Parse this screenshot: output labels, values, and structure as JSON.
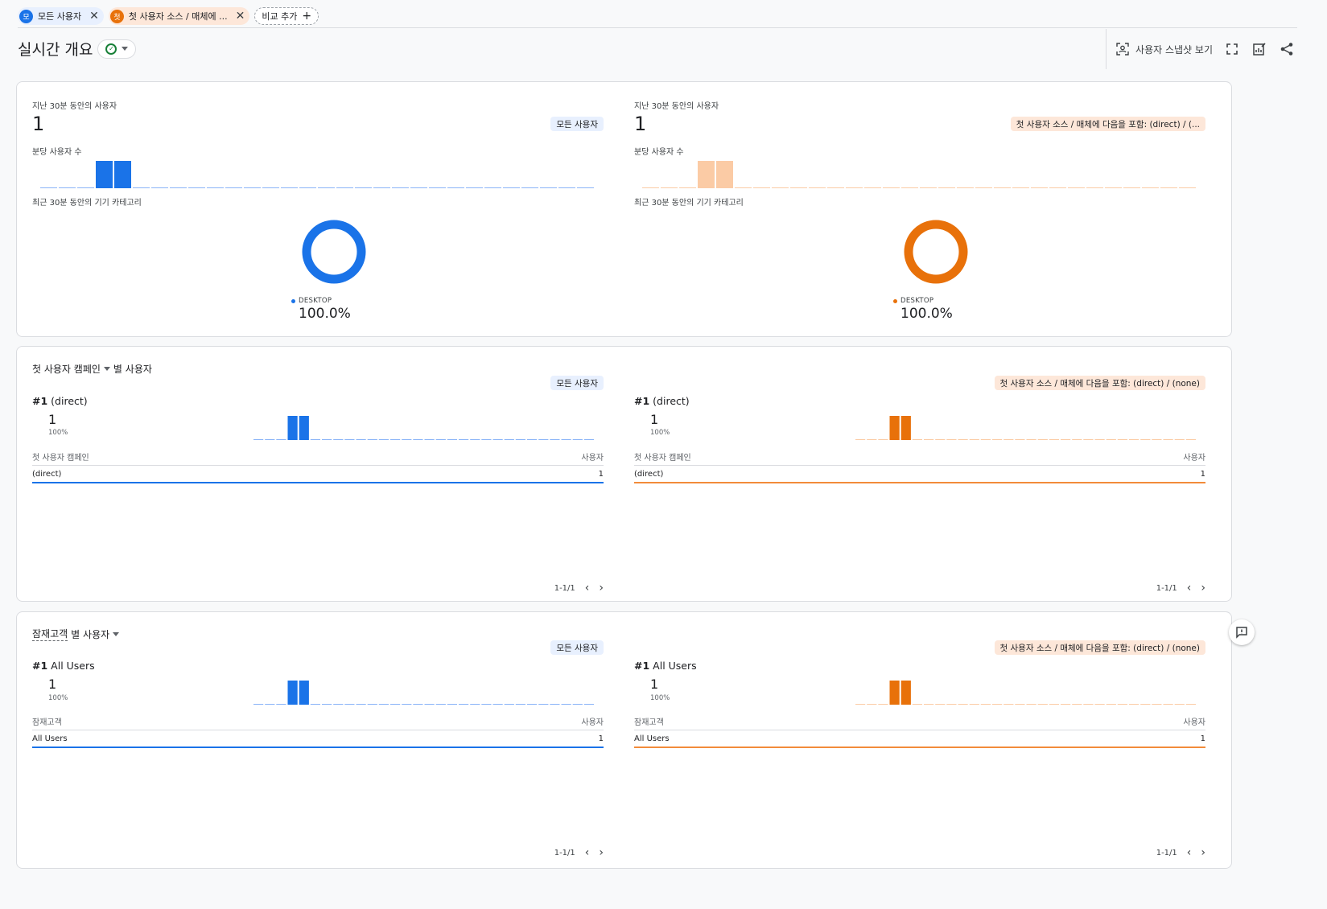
{
  "comparisons": {
    "chip1": {
      "avatar": "모",
      "label": "모든 사용자"
    },
    "chip2": {
      "avatar": "첫",
      "label": "첫 사용자 소스 / 매체에 ..."
    },
    "add_label": "비교 추가"
  },
  "header": {
    "title": "실시간 개요",
    "snapshot_label": "사용자 스냅샷 보기"
  },
  "colors": {
    "blue": "#1a73e8",
    "orange": "#e8710a",
    "orange_light": "#fbcba5",
    "blue_empty": "#8ab4f8",
    "orange_empty": "#fbcba5"
  },
  "overview": {
    "left": {
      "users_label": "지난 30분 동안의 사용자",
      "users_value": "1",
      "badge": "모든 사용자",
      "per_minute_label": "분당 사용자 수",
      "device_label": "최근 30분 동안의 기기 카테고리",
      "device_name": "DESKTOP",
      "device_pct": "100.0%"
    },
    "right": {
      "users_label": "지난 30분 동안의 사용자",
      "users_value": "1",
      "badge": "첫 사용자 소스 / 매체에 다음을 포함: (direct) / (...",
      "per_minute_label": "분당 사용자 수",
      "device_label": "최근 30분 동안의 기기 카테고리",
      "device_name": "DESKTOP",
      "device_pct": "100.0%"
    }
  },
  "campaign": {
    "title_part1": "첫 사용자 캠페인",
    "title_part2": "별 사용자",
    "left": {
      "badge": "모든 사용자",
      "rank": "#1",
      "rank_name": "(direct)",
      "rank_value": "1",
      "rank_pct": "100%",
      "col_dim": "첫 사용자 캠페인",
      "col_metric": "사용자",
      "row_name": "(direct)",
      "row_value": "1",
      "pager": "1-1/1"
    },
    "right": {
      "badge": "첫 사용자 소스 / 매체에 다음을 포함: (direct) / (none)",
      "rank": "#1",
      "rank_name": "(direct)",
      "rank_value": "1",
      "rank_pct": "100%",
      "col_dim": "첫 사용자 캠페인",
      "col_metric": "사용자",
      "row_name": "(direct)",
      "row_value": "1",
      "pager": "1-1/1"
    }
  },
  "audience": {
    "title_part1": "잠재고객",
    "title_part2": "별 사용자",
    "left": {
      "badge": "모든 사용자",
      "rank": "#1",
      "rank_name": "All Users",
      "rank_value": "1",
      "rank_pct": "100%",
      "col_dim": "잠재고객",
      "col_metric": "사용자",
      "row_name": "All Users",
      "row_value": "1",
      "pager": "1-1/1"
    },
    "right": {
      "badge": "첫 사용자 소스 / 매체에 다음을 포함: (direct) / (none)",
      "rank": "#1",
      "rank_name": "All Users",
      "rank_value": "1",
      "rank_pct": "100%",
      "col_dim": "잠재고객",
      "col_metric": "사용자",
      "row_name": "All Users",
      "row_value": "1",
      "pager": "1-1/1"
    }
  },
  "chart_data": [
    {
      "type": "bar",
      "name_hint": "overview-left",
      "values": [
        0,
        0,
        0,
        1,
        1,
        0,
        0,
        0,
        0,
        0,
        0,
        0,
        0,
        0,
        0,
        0,
        0,
        0,
        0,
        0,
        0,
        0,
        0,
        0,
        0,
        0,
        0,
        0,
        0,
        0
      ],
      "ylim": [
        0,
        1
      ]
    },
    {
      "type": "bar",
      "name_hint": "overview-right",
      "values": [
        0,
        0,
        0,
        1,
        1,
        0,
        0,
        0,
        0,
        0,
        0,
        0,
        0,
        0,
        0,
        0,
        0,
        0,
        0,
        0,
        0,
        0,
        0,
        0,
        0,
        0,
        0,
        0,
        0,
        0
      ],
      "ylim": [
        0,
        1
      ]
    },
    {
      "type": "pie",
      "name_hint": "device-left",
      "categories": [
        "DESKTOP"
      ],
      "values": [
        100
      ]
    },
    {
      "type": "pie",
      "name_hint": "device-right",
      "categories": [
        "DESKTOP"
      ],
      "values": [
        100
      ]
    },
    {
      "type": "bar",
      "name_hint": "campaign-left",
      "values": [
        0,
        0,
        0,
        1,
        1,
        0,
        0,
        0,
        0,
        0,
        0,
        0,
        0,
        0,
        0,
        0,
        0,
        0,
        0,
        0,
        0,
        0,
        0,
        0,
        0,
        0,
        0,
        0,
        0,
        0
      ],
      "ylim": [
        0,
        1
      ]
    },
    {
      "type": "bar",
      "name_hint": "campaign-right",
      "values": [
        0,
        0,
        0,
        1,
        1,
        0,
        0,
        0,
        0,
        0,
        0,
        0,
        0,
        0,
        0,
        0,
        0,
        0,
        0,
        0,
        0,
        0,
        0,
        0,
        0,
        0,
        0,
        0,
        0,
        0
      ],
      "ylim": [
        0,
        1
      ]
    },
    {
      "type": "bar",
      "name_hint": "audience-left",
      "values": [
        0,
        0,
        0,
        1,
        1,
        0,
        0,
        0,
        0,
        0,
        0,
        0,
        0,
        0,
        0,
        0,
        0,
        0,
        0,
        0,
        0,
        0,
        0,
        0,
        0,
        0,
        0,
        0,
        0,
        0
      ],
      "ylim": [
        0,
        1
      ]
    },
    {
      "type": "bar",
      "name_hint": "audience-right",
      "values": [
        0,
        0,
        0,
        1,
        1,
        0,
        0,
        0,
        0,
        0,
        0,
        0,
        0,
        0,
        0,
        0,
        0,
        0,
        0,
        0,
        0,
        0,
        0,
        0,
        0,
        0,
        0,
        0,
        0,
        0
      ],
      "ylim": [
        0,
        1
      ]
    }
  ]
}
